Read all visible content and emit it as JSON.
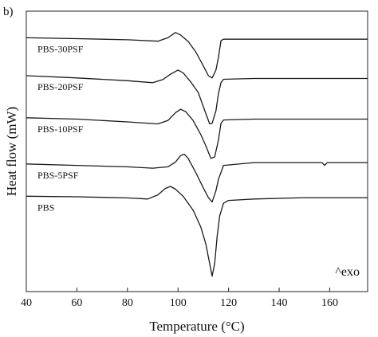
{
  "panel_label": "b)",
  "annotation": "^exo",
  "chart_data": {
    "type": "line",
    "xlabel": "Temperature (°C)",
    "ylabel": "Heat flow (mW)",
    "xlim": [
      40,
      175
    ],
    "xticks": [
      40,
      60,
      80,
      100,
      120,
      140,
      160
    ],
    "ylim": [
      0,
      1
    ],
    "y_ticks_labeled": false,
    "grid": false,
    "legend": "none",
    "y_units": "arbitrary, vertically offset",
    "series": [
      {
        "name": "PBS-30PSF",
        "points": [
          [
            40,
            0.905
          ],
          [
            60,
            0.902
          ],
          [
            80,
            0.898
          ],
          [
            92,
            0.893
          ],
          [
            96,
            0.905
          ],
          [
            99,
            0.924
          ],
          [
            101,
            0.915
          ],
          [
            104,
            0.892
          ],
          [
            107,
            0.855
          ],
          [
            110,
            0.805
          ],
          [
            112,
            0.77
          ],
          [
            113.5,
            0.762
          ],
          [
            115,
            0.79
          ],
          [
            116,
            0.835
          ],
          [
            117,
            0.895
          ],
          [
            118,
            0.9
          ],
          [
            130,
            0.9
          ],
          [
            150,
            0.9
          ],
          [
            175,
            0.9
          ]
        ]
      },
      {
        "name": "PBS-20PSF",
        "points": [
          [
            40,
            0.77
          ],
          [
            60,
            0.762
          ],
          [
            80,
            0.752
          ],
          [
            90,
            0.745
          ],
          [
            94,
            0.756
          ],
          [
            97,
            0.775
          ],
          [
            100,
            0.79
          ],
          [
            102,
            0.78
          ],
          [
            105,
            0.748
          ],
          [
            108,
            0.71
          ],
          [
            111,
            0.635
          ],
          [
            112.5,
            0.598
          ],
          [
            113.5,
            0.6
          ],
          [
            115,
            0.645
          ],
          [
            116,
            0.705
          ],
          [
            117,
            0.745
          ],
          [
            118,
            0.757
          ],
          [
            130,
            0.76
          ],
          [
            150,
            0.76
          ],
          [
            175,
            0.76
          ]
        ]
      },
      {
        "name": "PBS-10PSF",
        "points": [
          [
            40,
            0.62
          ],
          [
            60,
            0.615
          ],
          [
            80,
            0.605
          ],
          [
            92,
            0.598
          ],
          [
            96,
            0.61
          ],
          [
            99,
            0.638
          ],
          [
            101,
            0.65
          ],
          [
            103,
            0.642
          ],
          [
            106,
            0.61
          ],
          [
            109,
            0.56
          ],
          [
            111,
            0.52
          ],
          [
            113,
            0.475
          ],
          [
            114.5,
            0.48
          ],
          [
            116,
            0.54
          ],
          [
            117,
            0.6
          ],
          [
            118,
            0.612
          ],
          [
            130,
            0.615
          ],
          [
            150,
            0.615
          ],
          [
            175,
            0.615
          ]
        ]
      },
      {
        "name": "PBS-5PSF",
        "points": [
          [
            40,
            0.455
          ],
          [
            60,
            0.45
          ],
          [
            80,
            0.445
          ],
          [
            90,
            0.44
          ],
          [
            96,
            0.445
          ],
          [
            99,
            0.462
          ],
          [
            101,
            0.485
          ],
          [
            102.5,
            0.49
          ],
          [
            104,
            0.475
          ],
          [
            107,
            0.425
          ],
          [
            110,
            0.37
          ],
          [
            112,
            0.335
          ],
          [
            113.5,
            0.32
          ],
          [
            115,
            0.36
          ],
          [
            116,
            0.4
          ],
          [
            118,
            0.45
          ],
          [
            130,
            0.46
          ],
          [
            150,
            0.46
          ],
          [
            157,
            0.46
          ],
          [
            158,
            0.45
          ],
          [
            159,
            0.46
          ],
          [
            175,
            0.46
          ]
        ]
      },
      {
        "name": "PBS",
        "points": [
          [
            40,
            0.34
          ],
          [
            60,
            0.338
          ],
          [
            80,
            0.334
          ],
          [
            88,
            0.33
          ],
          [
            92,
            0.345
          ],
          [
            95,
            0.368
          ],
          [
            97,
            0.375
          ],
          [
            99,
            0.365
          ],
          [
            102,
            0.34
          ],
          [
            106,
            0.29
          ],
          [
            109,
            0.23
          ],
          [
            111,
            0.17
          ],
          [
            112.5,
            0.1
          ],
          [
            113.5,
            0.055
          ],
          [
            114.5,
            0.1
          ],
          [
            115.5,
            0.2
          ],
          [
            116.5,
            0.27
          ],
          [
            118,
            0.315
          ],
          [
            120,
            0.325
          ],
          [
            130,
            0.33
          ],
          [
            150,
            0.335
          ],
          [
            175,
            0.335
          ]
        ]
      }
    ]
  }
}
